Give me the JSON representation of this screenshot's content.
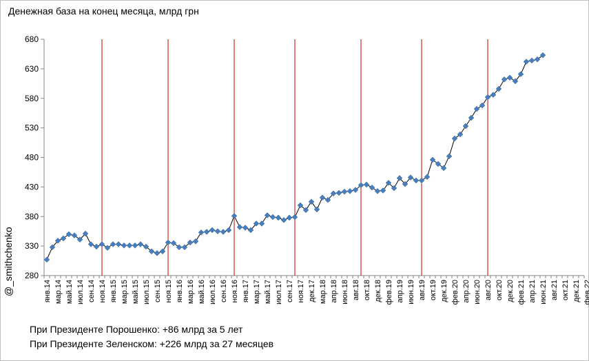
{
  "chart_data": {
    "type": "line",
    "title": "Денежная база на конец месяца, млрд грн",
    "watermark": "@_smithchenko",
    "ylim": [
      280,
      680
    ],
    "yticks": [
      280,
      330,
      380,
      430,
      480,
      530,
      580,
      630,
      680
    ],
    "x_tick_labels": [
      "янв.14",
      "мар.14",
      "май.14",
      "июл.14",
      "сен.14",
      "ноя.14",
      "янв.15",
      "мар.15",
      "май.15",
      "июл.15",
      "сен.15",
      "ноя.15",
      "янв.16",
      "мар.16",
      "май.16",
      "июл.16",
      "сен.16",
      "ноя.16",
      "янв.17",
      "мар.17",
      "май.17",
      "июл.17",
      "сен.17",
      "ноя.17",
      "дек.17",
      "мар.18",
      "апр.18",
      "июн.18",
      "авг.18",
      "окт.18",
      "дек.18",
      "фев.19",
      "апр.19",
      "июн.19",
      "авг.19",
      "окт.19",
      "дек.19",
      "фев.20",
      "апр.20",
      "июн.20",
      "авг.20",
      "окт.20",
      "дек.20",
      "фев.21",
      "апр.21",
      "июн.21",
      "авг.21",
      "окт.21",
      "дек.21",
      "фев.22"
    ],
    "grid": false,
    "markers": "diamond",
    "line_color": "#000000",
    "marker_color": "#4a7ebb",
    "vline_color": "#c00000",
    "vlines_at_month_index": [
      10,
      22,
      34,
      45,
      57,
      68,
      80
    ],
    "series": [
      {
        "values": [
          307,
          328,
          339,
          343,
          350,
          348,
          341,
          351,
          333,
          329,
          333,
          327,
          333,
          333,
          331,
          331,
          331,
          333,
          329,
          321,
          318,
          321,
          336,
          335,
          328,
          328,
          336,
          338,
          353,
          354,
          357,
          355,
          354,
          357,
          381,
          362,
          361,
          357,
          368,
          368,
          382,
          379,
          378,
          374,
          378,
          379,
          399,
          391,
          405,
          392,
          412,
          408,
          419,
          420,
          422,
          423,
          425,
          433,
          434,
          429,
          423,
          424,
          437,
          428,
          445,
          435,
          446,
          441,
          441,
          447,
          476,
          469,
          462,
          482,
          512,
          519,
          533,
          547,
          562,
          568,
          582,
          586,
          596,
          612,
          615,
          609,
          621,
          642,
          644,
          646,
          653
        ]
      }
    ]
  },
  "notes": [
    "При Президенте Порошенко: +86 млрд за 5 лет",
    "При Президенте Зеленском:  +226 млрд  за 27 месяцев"
  ]
}
